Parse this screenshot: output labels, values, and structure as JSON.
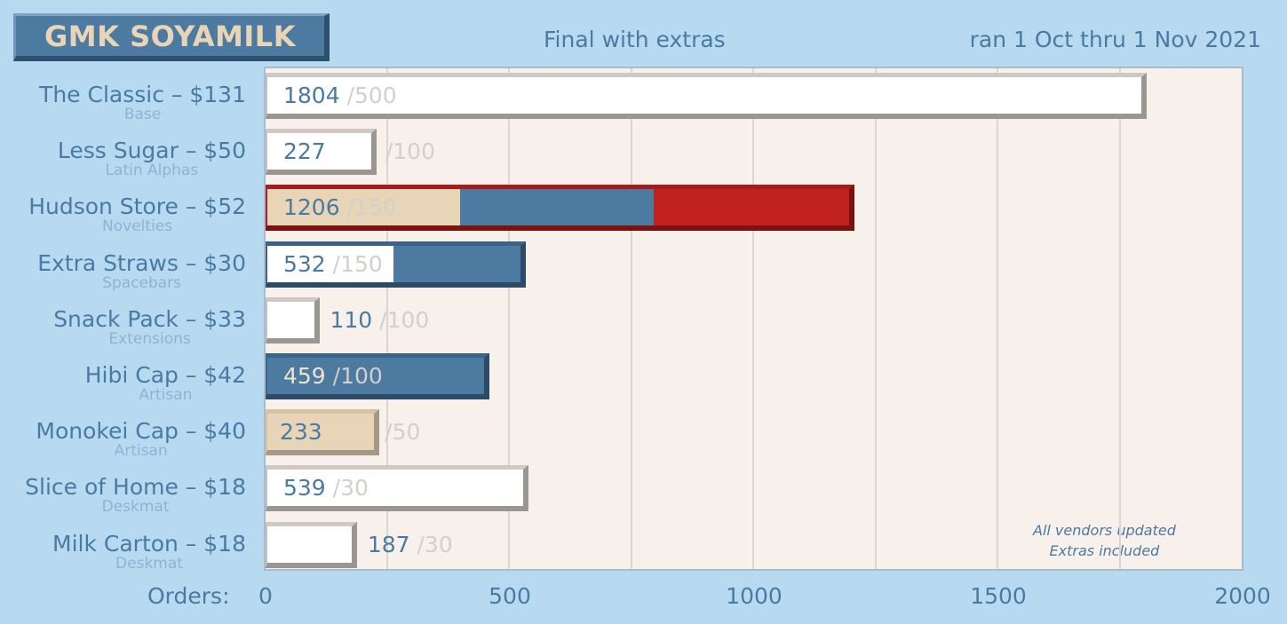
{
  "header": {
    "logo": "GMK SOYAMILK",
    "subtitle": "Final with extras",
    "date_range": "ran 1 Oct thru 1 Nov 2021"
  },
  "footer": {
    "orders_label": "Orders:"
  },
  "notes": [
    "All vendors updated",
    "Extras included"
  ],
  "colors": {
    "background": "#b7daf1",
    "plot_bg": "#f8f1eb",
    "bar_white": "#ffffff",
    "bar_beige": "#e8d5b7",
    "bar_blue": "#4d7aa0",
    "bar_red": "#c0231f",
    "text_blue": "#4a7aa3",
    "goal_gray": "#d3cfcb"
  },
  "chart_data": {
    "type": "bar",
    "orientation": "horizontal",
    "x_ticks": [
      0,
      500,
      1000,
      1500,
      2000
    ],
    "xlim": [
      0,
      2000
    ],
    "grid": true,
    "rows": [
      {
        "name": "The Classic – $131",
        "category": "Base",
        "orders": 1804,
        "goal": "/500",
        "color": "white",
        "segments": [
          {
            "from": 0,
            "to": 1804,
            "color": "white"
          }
        ]
      },
      {
        "name": "Less Sugar – $50",
        "category": "Latin Alphas",
        "orders": 227,
        "goal": "/100",
        "color": "white",
        "segments": [
          {
            "from": 0,
            "to": 227,
            "color": "white"
          }
        ]
      },
      {
        "name": "Hudson Store – $52",
        "category": "Novelties",
        "orders": 1206,
        "goal": "/150",
        "color": "red",
        "segments": [
          {
            "from": 0,
            "to": 400,
            "color": "beige"
          },
          {
            "from": 400,
            "to": 800,
            "color": "blue"
          },
          {
            "from": 800,
            "to": 1206,
            "color": "red"
          }
        ]
      },
      {
        "name": "Extra Straws – $30",
        "category": "Spacebars",
        "orders": 532,
        "goal": "/150",
        "color": "dark",
        "segments": [
          {
            "from": 0,
            "to": 266,
            "color": "white"
          },
          {
            "from": 266,
            "to": 532,
            "color": "blue"
          }
        ]
      },
      {
        "name": "Snack Pack – $33",
        "category": "Extensions",
        "orders": 110,
        "goal": "/100",
        "color": "white",
        "segments": [
          {
            "from": 0,
            "to": 110,
            "color": "white"
          }
        ]
      },
      {
        "name": "Hibi Cap – $42",
        "category": "Artisan",
        "orders": 459,
        "goal": "/100",
        "color": "dark",
        "segments": [
          {
            "from": 0,
            "to": 459,
            "color": "blue"
          }
        ]
      },
      {
        "name": "Monokei Cap – $40",
        "category": "Artisan",
        "orders": 233,
        "goal": "/50",
        "color": "beige",
        "segments": [
          {
            "from": 0,
            "to": 233,
            "color": "beige"
          }
        ]
      },
      {
        "name": "Slice of Home – $18",
        "category": "Deskmat",
        "orders": 539,
        "goal": "/30",
        "color": "white",
        "segments": [
          {
            "from": 0,
            "to": 539,
            "color": "white"
          }
        ]
      },
      {
        "name": "Milk Carton – $18",
        "category": "Deskmat",
        "orders": 187,
        "goal": "/30",
        "color": "white",
        "segments": [
          {
            "from": 0,
            "to": 187,
            "color": "white"
          }
        ]
      }
    ]
  }
}
